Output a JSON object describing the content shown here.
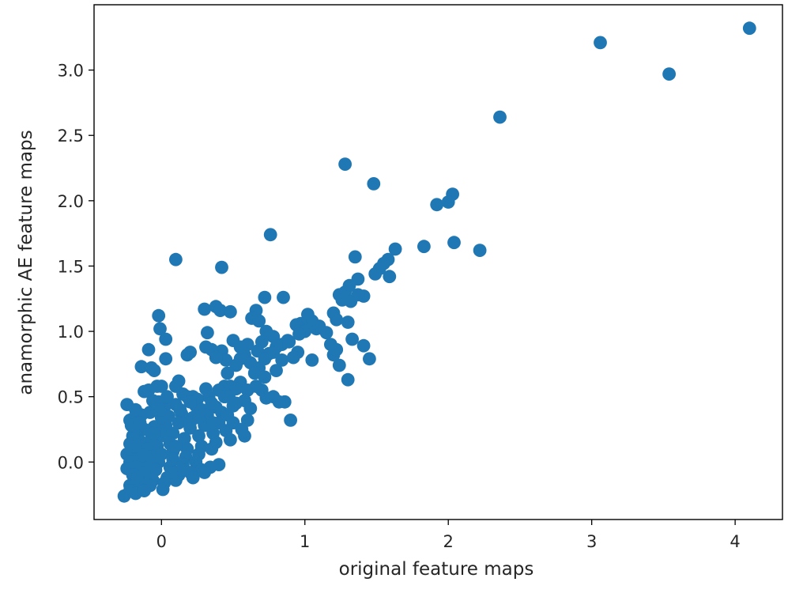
{
  "chart_data": {
    "type": "scatter",
    "title": "",
    "xlabel": "original feature maps",
    "ylabel": "anamorphic AE feature maps",
    "xlim": [
      -0.47,
      4.33
    ],
    "ylim": [
      -0.44,
      3.5
    ],
    "xticks": [
      0,
      1,
      2,
      3,
      4
    ],
    "xtick_labels": [
      "0",
      "1",
      "2",
      "3",
      "4"
    ],
    "yticks": [
      0.0,
      0.5,
      1.0,
      1.5,
      2.0,
      2.5,
      3.0
    ],
    "ytick_labels": [
      "0.0",
      "0.5",
      "1.0",
      "1.5",
      "2.0",
      "2.5",
      "3.0"
    ],
    "grid": false,
    "series": [
      {
        "color": "#1f77b4",
        "points": [
          [
            4.1,
            3.32
          ],
          [
            3.06,
            3.21
          ],
          [
            3.54,
            2.97
          ],
          [
            2.36,
            2.64
          ],
          [
            1.28,
            2.28
          ],
          [
            1.48,
            2.13
          ],
          [
            2.03,
            2.05
          ],
          [
            2.0,
            1.99
          ],
          [
            1.92,
            1.97
          ],
          [
            0.76,
            1.74
          ],
          [
            1.83,
            1.65
          ],
          [
            2.04,
            1.68
          ],
          [
            2.22,
            1.62
          ],
          [
            1.63,
            1.63
          ],
          [
            1.58,
            1.55
          ],
          [
            1.55,
            1.52
          ],
          [
            1.52,
            1.48
          ],
          [
            1.35,
            1.57
          ],
          [
            0.1,
            1.55
          ],
          [
            0.42,
            1.49
          ],
          [
            1.59,
            1.42
          ],
          [
            1.49,
            1.44
          ],
          [
            1.37,
            1.4
          ],
          [
            1.31,
            1.35
          ],
          [
            1.28,
            1.3
          ],
          [
            1.24,
            1.28
          ],
          [
            1.26,
            1.24
          ],
          [
            1.32,
            1.23
          ],
          [
            1.41,
            1.27
          ],
          [
            1.37,
            1.28
          ],
          [
            0.72,
            1.26
          ],
          [
            0.85,
            1.26
          ],
          [
            0.66,
            1.16
          ],
          [
            0.38,
            1.19
          ],
          [
            0.3,
            1.17
          ],
          [
            0.41,
            1.16
          ],
          [
            0.48,
            1.15
          ],
          [
            0.63,
            1.1
          ],
          [
            0.68,
            1.08
          ],
          [
            1.05,
            1.08
          ],
          [
            1.02,
            1.13
          ],
          [
            0.97,
            1.06
          ],
          [
            0.94,
            1.05
          ],
          [
            1.2,
            1.14
          ],
          [
            1.22,
            1.09
          ],
          [
            1.3,
            1.07
          ],
          [
            -0.02,
            1.12
          ],
          [
            -0.01,
            1.02
          ],
          [
            0.03,
            0.94
          ],
          [
            0.32,
            0.99
          ],
          [
            0.73,
            1.0
          ],
          [
            0.78,
            0.96
          ],
          [
            1.0,
            1.0
          ],
          [
            1.08,
            1.02
          ],
          [
            0.88,
            0.93
          ],
          [
            0.84,
            0.9
          ],
          [
            0.8,
            0.88
          ],
          [
            0.7,
            0.92
          ],
          [
            0.67,
            0.85
          ],
          [
            0.5,
            0.93
          ],
          [
            1.33,
            0.94
          ],
          [
            1.41,
            0.89
          ],
          [
            1.18,
            0.9
          ],
          [
            1.2,
            0.82
          ],
          [
            1.22,
            0.86
          ],
          [
            0.95,
            0.84
          ],
          [
            0.92,
            0.8
          ],
          [
            1.05,
            0.78
          ],
          [
            0.78,
            0.84
          ],
          [
            0.75,
            0.83
          ],
          [
            0.58,
            0.82
          ],
          [
            0.55,
            0.79
          ],
          [
            0.62,
            0.76
          ],
          [
            0.68,
            0.72
          ],
          [
            0.72,
            0.79
          ],
          [
            0.42,
            0.85
          ],
          [
            0.31,
            0.88
          ],
          [
            0.35,
            0.86
          ],
          [
            0.18,
            0.82
          ],
          [
            0.2,
            0.84
          ],
          [
            0.03,
            0.79
          ],
          [
            -0.09,
            0.86
          ],
          [
            0.45,
            0.78
          ],
          [
            0.38,
            0.8
          ],
          [
            0.52,
            0.74
          ],
          [
            0.65,
            0.68
          ],
          [
            0.72,
            0.65
          ],
          [
            0.46,
            0.68
          ],
          [
            0.55,
            0.61
          ],
          [
            0.44,
            0.58
          ],
          [
            1.45,
            0.79
          ],
          [
            1.24,
            0.74
          ],
          [
            1.3,
            0.63
          ],
          [
            -0.14,
            0.73
          ],
          [
            -0.07,
            0.72
          ],
          [
            -0.05,
            0.7
          ],
          [
            0.12,
            0.62
          ],
          [
            0.1,
            0.58
          ],
          [
            0.0,
            0.58
          ],
          [
            -0.03,
            0.58
          ],
          [
            -0.09,
            0.55
          ],
          [
            -0.12,
            0.54
          ],
          [
            0.15,
            0.52
          ],
          [
            0.18,
            0.5
          ],
          [
            0.22,
            0.5
          ],
          [
            0.25,
            0.48
          ],
          [
            0.31,
            0.56
          ],
          [
            0.4,
            0.55
          ],
          [
            0.48,
            0.58
          ],
          [
            0.52,
            0.56
          ],
          [
            0.6,
            0.55
          ],
          [
            0.7,
            0.55
          ],
          [
            0.78,
            0.5
          ],
          [
            0.82,
            0.46
          ],
          [
            0.86,
            0.46
          ],
          [
            0.73,
            0.49
          ],
          [
            0.58,
            0.47
          ],
          [
            0.44,
            0.5
          ],
          [
            0.33,
            0.5
          ],
          [
            0.24,
            0.43
          ],
          [
            0.2,
            0.46
          ],
          [
            0.1,
            0.44
          ],
          [
            0.02,
            0.42
          ],
          [
            -0.02,
            0.46
          ],
          [
            -0.06,
            0.47
          ],
          [
            -0.24,
            0.44
          ],
          [
            -0.08,
            0.38
          ],
          [
            -0.14,
            0.36
          ],
          [
            -0.2,
            0.33
          ],
          [
            -0.22,
            0.32
          ],
          [
            0.05,
            0.35
          ],
          [
            0.14,
            0.37
          ],
          [
            0.28,
            0.4
          ],
          [
            0.38,
            0.42
          ],
          [
            0.5,
            0.43
          ],
          [
            0.62,
            0.41
          ],
          [
            0.42,
            0.38
          ],
          [
            0.32,
            0.36
          ],
          [
            0.22,
            0.34
          ],
          [
            0.12,
            0.3
          ],
          [
            0.03,
            0.28
          ],
          [
            -0.05,
            0.27
          ],
          [
            -0.12,
            0.25
          ],
          [
            -0.18,
            0.22
          ],
          [
            0.9,
            0.32
          ],
          [
            0.6,
            0.32
          ],
          [
            0.5,
            0.3
          ],
          [
            0.4,
            0.3
          ],
          [
            0.3,
            0.28
          ],
          [
            0.2,
            0.26
          ],
          [
            0.08,
            0.22
          ],
          [
            0.0,
            0.2
          ],
          [
            -0.07,
            0.18
          ],
          [
            -0.15,
            0.16
          ],
          [
            -0.22,
            0.14
          ],
          [
            0.56,
            0.25
          ],
          [
            0.45,
            0.24
          ],
          [
            0.36,
            0.22
          ],
          [
            0.26,
            0.2
          ],
          [
            0.16,
            0.18
          ],
          [
            0.06,
            0.14
          ],
          [
            -0.03,
            0.12
          ],
          [
            -0.1,
            0.1
          ],
          [
            -0.18,
            0.08
          ],
          [
            -0.24,
            0.06
          ],
          [
            0.58,
            0.2
          ],
          [
            0.48,
            0.17
          ],
          [
            0.38,
            0.15
          ],
          [
            0.28,
            0.12
          ],
          [
            0.18,
            0.1
          ],
          [
            0.08,
            0.08
          ],
          [
            0.0,
            0.06
          ],
          [
            -0.08,
            0.04
          ],
          [
            -0.16,
            0.02
          ],
          [
            -0.22,
            0.0
          ],
          [
            0.35,
            0.1
          ],
          [
            0.26,
            0.06
          ],
          [
            0.17,
            0.04
          ],
          [
            0.08,
            0.02
          ],
          [
            -0.02,
            0.0
          ],
          [
            -0.1,
            -0.02
          ],
          [
            -0.18,
            -0.04
          ],
          [
            -0.24,
            -0.05
          ],
          [
            0.24,
            0.0
          ],
          [
            0.15,
            -0.02
          ],
          [
            0.06,
            -0.04
          ],
          [
            -0.04,
            -0.06
          ],
          [
            -0.12,
            -0.08
          ],
          [
            -0.2,
            -0.1
          ],
          [
            0.4,
            -0.02
          ],
          [
            0.34,
            -0.04
          ],
          [
            0.28,
            -0.06
          ],
          [
            0.2,
            -0.08
          ],
          [
            0.12,
            -0.1
          ],
          [
            0.04,
            -0.12
          ],
          [
            -0.06,
            -0.14
          ],
          [
            -0.14,
            -0.16
          ],
          [
            -0.22,
            -0.18
          ],
          [
            0.1,
            -0.14
          ],
          [
            0.02,
            -0.16
          ],
          [
            -0.08,
            -0.18
          ],
          [
            -0.16,
            -0.2
          ],
          [
            -0.22,
            -0.22
          ],
          [
            -0.26,
            -0.26
          ],
          [
            0.01,
            -0.21
          ],
          [
            -0.18,
            -0.24
          ],
          [
            -0.12,
            -0.22
          ],
          [
            0.22,
            -0.12
          ],
          [
            0.14,
            -0.06
          ],
          [
            0.3,
            -0.08
          ],
          [
            -0.18,
            0.4
          ],
          [
            -0.2,
            0.2
          ],
          [
            -0.21,
            0.28
          ],
          [
            -0.19,
            0.12
          ],
          [
            -0.17,
            -0.12
          ],
          [
            -0.13,
            0.05
          ],
          [
            0.0,
            0.34
          ],
          [
            0.1,
            0.12
          ],
          [
            0.2,
            0.3
          ],
          [
            0.07,
            -0.08
          ],
          [
            -0.05,
            0.22
          ],
          [
            -0.15,
            0.3
          ],
          [
            0.13,
            0.4
          ],
          [
            0.26,
            0.34
          ],
          [
            0.36,
            0.3
          ],
          [
            0.46,
            0.36
          ],
          [
            0.66,
            0.58
          ],
          [
            0.8,
            0.7
          ],
          [
            0.84,
            0.78
          ],
          [
            0.89,
            0.92
          ],
          [
            0.96,
            0.98
          ],
          [
            1.1,
            1.04
          ],
          [
            1.15,
            0.99
          ],
          [
            0.6,
            0.9
          ],
          [
            0.55,
            0.88
          ],
          [
            0.47,
            0.5
          ],
          [
            0.52,
            0.45
          ],
          [
            0.35,
            0.45
          ],
          [
            0.04,
            0.5
          ],
          [
            -0.01,
            0.4
          ]
        ]
      }
    ]
  }
}
